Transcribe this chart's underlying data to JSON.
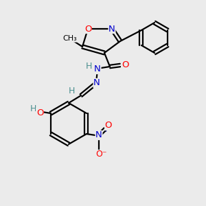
{
  "background_color": "#ebebeb",
  "colors": {
    "C": "#000000",
    "N": "#0000cd",
    "O": "#ff0000",
    "H": "#4a8f8f",
    "bond": "#000000"
  },
  "lw": 1.6,
  "fs": 9.5
}
